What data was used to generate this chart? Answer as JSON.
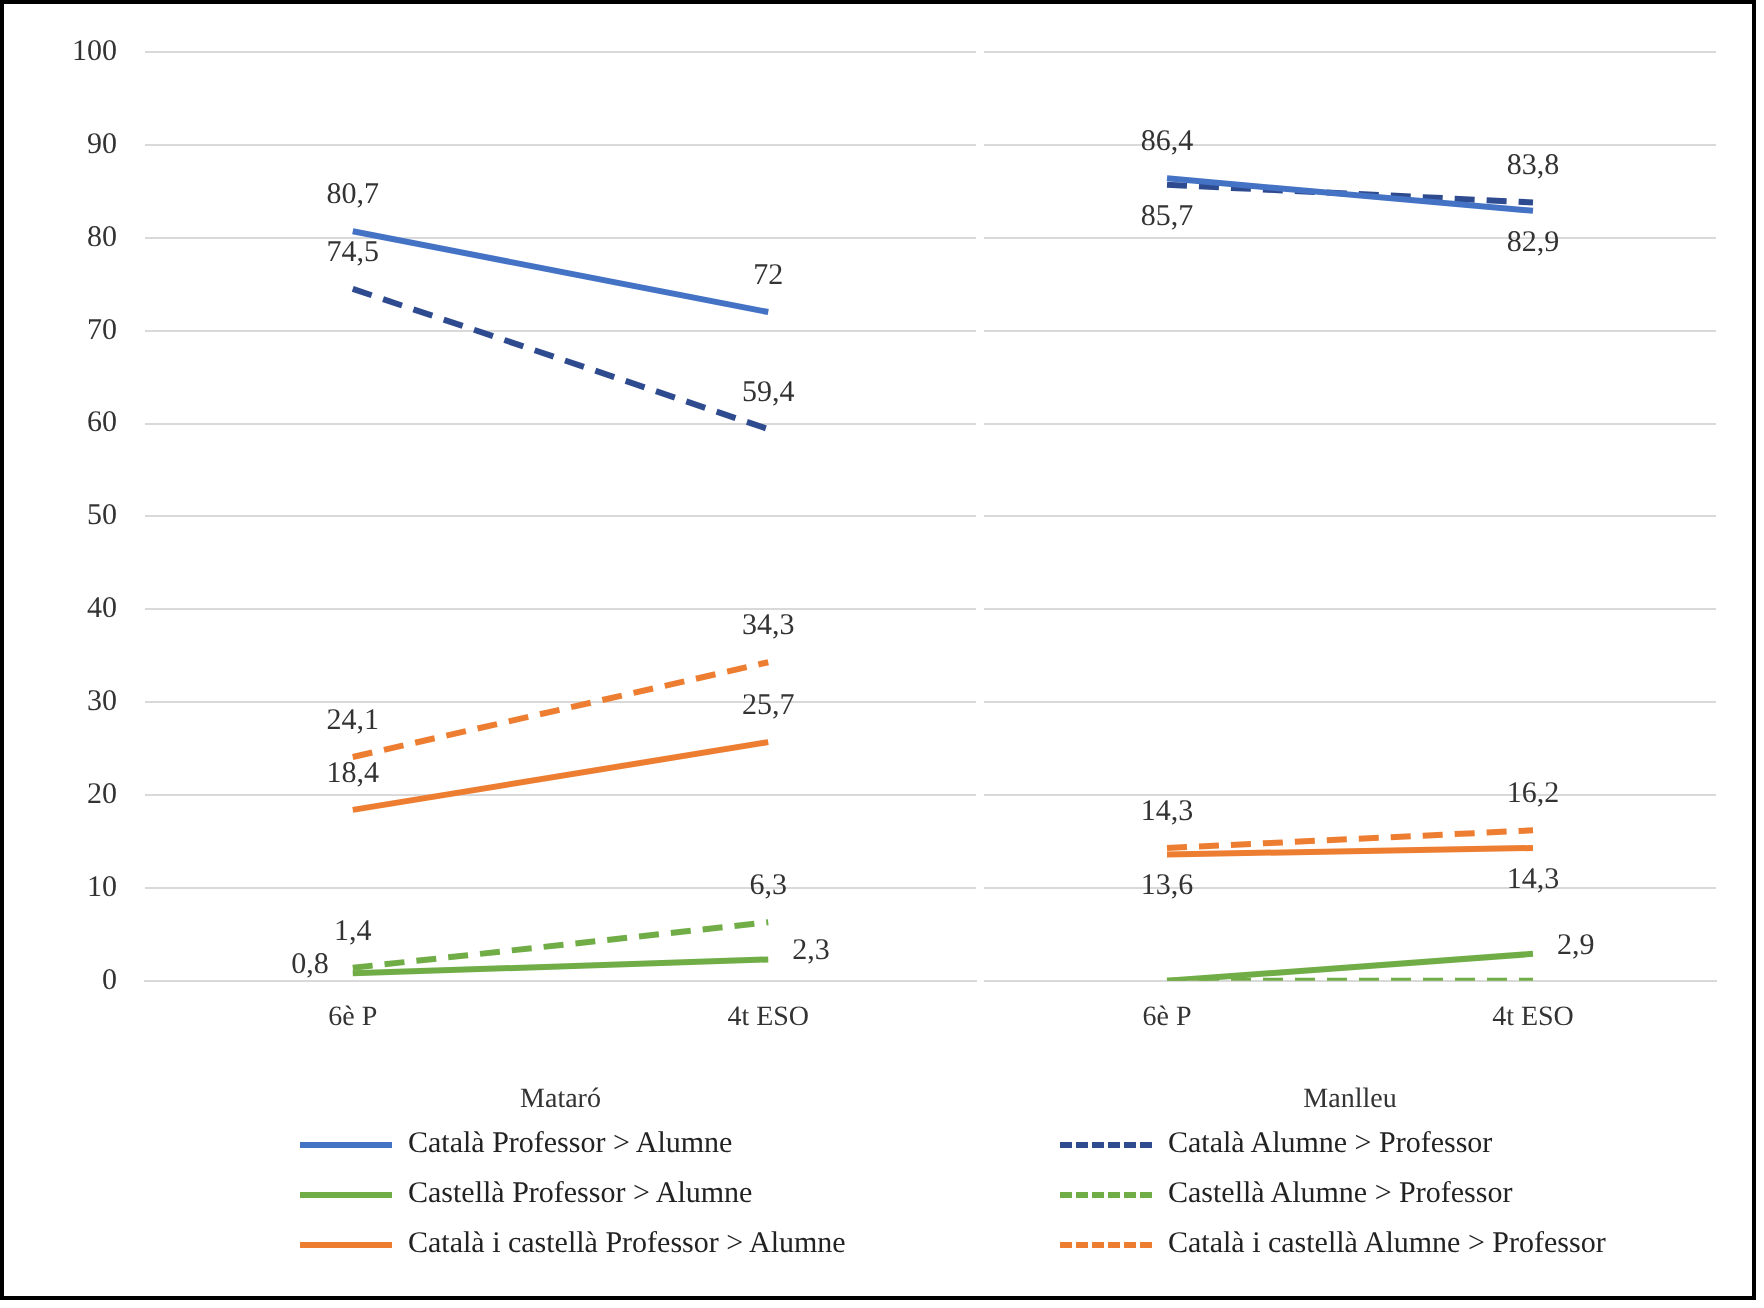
{
  "chart_data": [
    {
      "type": "line",
      "xlabel": "Mataró",
      "categories": [
        "6è P",
        "4t ESO"
      ],
      "ylim": [
        0,
        100
      ],
      "yticks": [
        0,
        10,
        20,
        30,
        40,
        50,
        60,
        70,
        80,
        90,
        100
      ],
      "grid": "y",
      "legend": "bottom",
      "marker": "none",
      "series": [
        {
          "name": "Català Professor > Alumne",
          "color": "#4472c4",
          "line_style": "solid",
          "values": [
            80.7,
            72
          ],
          "value_labels": [
            "80,7",
            "72"
          ]
        },
        {
          "name": "Català Alumne > Professor",
          "color": "#2f4b8f",
          "line_style": "dashed",
          "values": [
            74.5,
            59.4
          ],
          "value_labels": [
            "74,5",
            "59,4"
          ]
        },
        {
          "name": "Castellà Professor > Alumne",
          "color": "#70ad47",
          "line_style": "solid",
          "values": [
            0.8,
            2.3
          ],
          "value_labels": [
            "0,8",
            "2,3"
          ]
        },
        {
          "name": "Castellà Alumne > Professor",
          "color": "#70ad47",
          "line_style": "dashed",
          "values": [
            1.4,
            6.3
          ],
          "value_labels": [
            "1,4",
            "6,3"
          ]
        },
        {
          "name": "Català i castellà Professor > Alumne",
          "color": "#ed7d31",
          "line_style": "solid",
          "values": [
            18.4,
            25.7
          ],
          "value_labels": [
            "18,4",
            "25,7"
          ]
        },
        {
          "name": "Català i castellà Alumne > Professor",
          "color": "#ed7d31",
          "line_style": "dashed",
          "values": [
            24.1,
            34.3
          ],
          "value_labels": [
            "24,1",
            "34,3"
          ]
        }
      ]
    },
    {
      "type": "line",
      "xlabel": "Manlleu",
      "categories": [
        "6è P",
        "4t ESO"
      ],
      "ylim": [
        0,
        100
      ],
      "yticks": [
        0,
        10,
        20,
        30,
        40,
        50,
        60,
        70,
        80,
        90,
        100
      ],
      "grid": "y",
      "tick_labels": "x",
      "marker": "none",
      "series": [
        {
          "color": "#4472c4",
          "line_style": "solid",
          "values": [
            86.4,
            82.9
          ],
          "value_labels": [
            "86,4",
            "82,9"
          ]
        },
        {
          "color": "#2f4b8f",
          "line_style": "dashed",
          "values": [
            85.7,
            83.8
          ],
          "value_labels": [
            "85,7",
            "83,8"
          ]
        },
        {
          "color": "#70ad47",
          "line_style": "solid",
          "values": [
            0,
            2.9
          ],
          "value_labels": [
            null,
            "2,9"
          ]
        },
        {
          "color": "#70ad47",
          "line_style": "dashed",
          "values": [
            0,
            0
          ],
          "value_labels": [
            null,
            null
          ]
        },
        {
          "color": "#ed7d31",
          "line_style": "solid",
          "values": [
            13.6,
            14.3
          ],
          "value_labels": [
            "13,6",
            "14,3"
          ]
        },
        {
          "color": "#ed7d31",
          "line_style": "dashed",
          "values": [
            14.3,
            16.2
          ],
          "value_labels": [
            "14,3",
            "16,2"
          ]
        }
      ]
    }
  ]
}
